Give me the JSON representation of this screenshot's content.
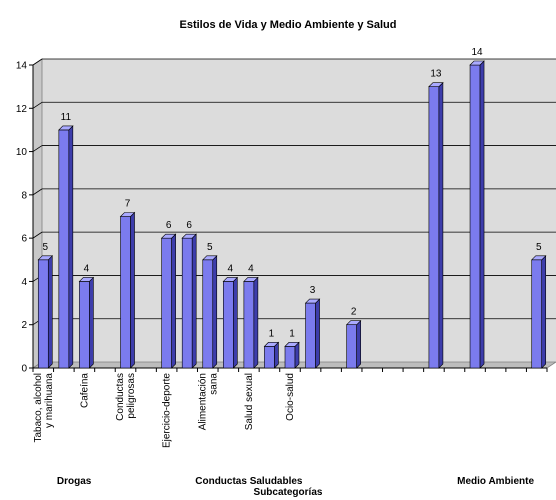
{
  "chart_data": {
    "type": "bar",
    "title": "Estilos de Vida y Medio Ambiente y Salud",
    "xlabel": "Subcategorías",
    "ylabel": "",
    "ylim": [
      0,
      14
    ],
    "yticks": [
      0,
      2,
      4,
      6,
      8,
      10,
      12,
      14
    ],
    "grid": true,
    "colors": {
      "bar_front": "#7b7bee",
      "bar_side": "#3d3dab",
      "bar_top": "#aaaaff",
      "plot_bg": "#dcdcdc"
    },
    "categories": [
      "Tabaco, alcohol y marihuana",
      "",
      "Cafeína",
      "",
      "Conductas peligrosas",
      "",
      "Ejercicio-deporte",
      "",
      "Alimentación sana",
      "",
      "Salud sexual",
      "",
      "Ocio-salud",
      "",
      "",
      "",
      "",
      "",
      "",
      "",
      "",
      "",
      "",
      "",
      ""
    ],
    "values": [
      5,
      11,
      4,
      null,
      7,
      null,
      6,
      6,
      5,
      4,
      4,
      1,
      1,
      3,
      null,
      2,
      null,
      null,
      null,
      13,
      null,
      14,
      null,
      null,
      5
    ],
    "groups": [
      {
        "label": "Drogas",
        "center_index": 1.5
      },
      {
        "label": "Conductas Saludables",
        "center_index": 10.0
      },
      {
        "label": "Medio Ambiente",
        "center_index": 22.0
      }
    ]
  }
}
